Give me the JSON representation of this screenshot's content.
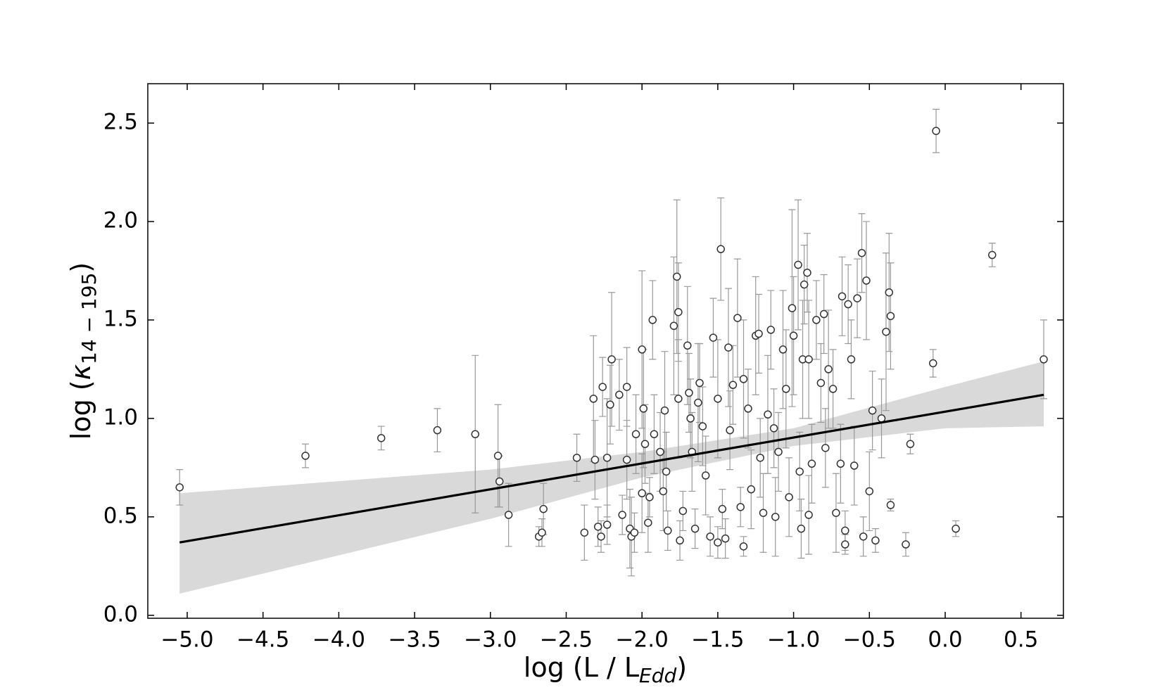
{
  "chart_data": {
    "type": "scatter",
    "xlabel": [
      "log (L / L",
      "Edd",
      ")"
    ],
    "ylabel": [
      "log (",
      "κ",
      "14 − 195",
      ")"
    ],
    "xlim": [
      -5.26,
      0.78
    ],
    "ylim": [
      -0.015,
      2.7
    ],
    "xticks": [
      {
        "value": -5.0,
        "label": "−5.0"
      },
      {
        "value": -4.5,
        "label": "−4.5"
      },
      {
        "value": -4.0,
        "label": "−4.0"
      },
      {
        "value": -3.5,
        "label": "−3.5"
      },
      {
        "value": -3.0,
        "label": "−3.0"
      },
      {
        "value": -2.5,
        "label": "−2.5"
      },
      {
        "value": -2.0,
        "label": "−2.0"
      },
      {
        "value": -1.5,
        "label": "−1.5"
      },
      {
        "value": -1.0,
        "label": "−1.0"
      },
      {
        "value": -0.5,
        "label": "−0.5"
      },
      {
        "value": 0.0,
        "label": "0.0"
      },
      0.5
    ],
    "yticks": [
      {
        "value": 0.0,
        "label": "0.0"
      },
      0.5,
      {
        "value": 1.0,
        "label": "1.0"
      },
      1.5,
      {
        "value": 2.0,
        "label": "2.0"
      },
      2.5
    ],
    "color": "#333333",
    "error_color": "#999999",
    "x": [
      -5.05,
      -4.22,
      -3.72,
      -3.35,
      -3.1,
      -2.95,
      -2.94,
      -2.88,
      -2.68,
      -2.66,
      -2.65,
      -2.43,
      -2.38,
      -2.32,
      -2.31,
      -2.29,
      -2.27,
      -2.26,
      -2.23,
      -2.23,
      -2.21,
      -2.2,
      -2.15,
      -2.13,
      -2.1,
      -2.1,
      -2.08,
      -2.07,
      -2.05,
      -2.04,
      -2.0,
      -1.99,
      -2.0,
      -1.98,
      -1.96,
      -1.95,
      -1.93,
      -1.92,
      -1.88,
      -1.86,
      -1.85,
      -1.84,
      -1.83,
      -1.79,
      -1.77,
      -1.76,
      -1.76,
      -1.75,
      -1.73,
      -1.7,
      -1.69,
      -1.68,
      -1.67,
      -1.65,
      -1.63,
      -1.62,
      -1.6,
      -1.58,
      -1.55,
      -1.53,
      -1.5,
      -1.48,
      -1.47,
      -1.45,
      -1.43,
      -1.42,
      -1.4,
      -1.37,
      -1.35,
      -1.33,
      -1.3,
      -1.28,
      -1.25,
      -1.23,
      -1.22,
      -1.2,
      -1.17,
      -1.15,
      -1.13,
      -1.1,
      -1.07,
      -1.05,
      -1.03,
      -1.01,
      -1.0,
      -0.97,
      -0.96,
      -0.94,
      -0.93,
      -0.91,
      -0.9,
      -0.9,
      -0.88,
      -0.85,
      -0.82,
      -0.8,
      -0.79,
      -0.77,
      -0.74,
      -0.72,
      -0.69,
      -0.68,
      -0.66,
      -0.64,
      -0.62,
      -0.6,
      -0.58,
      -0.55,
      -0.54,
      -0.52,
      -0.5,
      -0.48,
      -0.46,
      -0.42,
      -0.39,
      -0.37,
      -0.36,
      -0.36,
      -0.26,
      -0.23,
      -0.08,
      -0.06,
      0.07,
      0.31,
      0.65,
      -1.5,
      -1.33,
      -1.12,
      -0.95,
      -0.66
    ],
    "values": [
      0.65,
      0.81,
      0.9,
      0.94,
      0.92,
      0.81,
      0.68,
      0.51,
      0.4,
      0.42,
      0.54,
      0.8,
      0.42,
      1.1,
      0.79,
      0.45,
      0.4,
      1.16,
      0.46,
      0.8,
      1.07,
      1.3,
      1.12,
      0.51,
      1.16,
      0.79,
      0.44,
      0.4,
      0.42,
      0.92,
      1.35,
      1.05,
      0.62,
      0.87,
      0.47,
      0.6,
      1.5,
      0.92,
      0.83,
      0.63,
      1.04,
      0.73,
      0.43,
      1.47,
      1.72,
      1.54,
      1.1,
      0.38,
      0.53,
      1.37,
      1.13,
      1.0,
      0.83,
      0.44,
      1.08,
      1.18,
      0.96,
      0.71,
      0.4,
      1.41,
      1.1,
      1.86,
      0.54,
      0.39,
      1.36,
      0.94,
      1.17,
      1.51,
      0.55,
      1.2,
      1.05,
      0.64,
      1.42,
      1.43,
      0.8,
      0.52,
      1.02,
      1.45,
      0.95,
      0.83,
      1.35,
      1.15,
      0.6,
      1.56,
      1.42,
      1.78,
      0.73,
      1.3,
      1.68,
      1.74,
      1.3,
      0.51,
      0.77,
      1.5,
      1.18,
      1.53,
      0.85,
      1.25,
      1.15,
      0.52,
      0.77,
      1.62,
      0.43,
      1.58,
      1.3,
      0.76,
      1.61,
      1.84,
      0.4,
      1.7,
      0.63,
      1.04,
      0.38,
      1.0,
      1.44,
      1.64,
      1.52,
      0.56,
      0.36,
      0.87,
      1.28,
      2.46,
      0.44,
      1.83,
      1.3,
      0.37,
      0.35,
      0.5,
      0.44,
      0.36
    ],
    "yerr": [
      0.09,
      0.06,
      0.06,
      0.11,
      0.4,
      0.26,
      0.13,
      0.16,
      0.05,
      0.07,
      0.13,
      0.12,
      0.14,
      0.32,
      0.2,
      0.1,
      0.08,
      0.15,
      0.1,
      0.3,
      0.2,
      0.34,
      0.18,
      0.1,
      0.2,
      0.2,
      0.2,
      0.2,
      0.1,
      0.2,
      0.4,
      0.3,
      0.2,
      0.2,
      0.15,
      0.1,
      0.2,
      0.2,
      0.2,
      0.2,
      0.3,
      0.2,
      0.1,
      0.35,
      0.39,
      0.25,
      0.3,
      0.1,
      0.1,
      0.3,
      0.2,
      0.2,
      0.2,
      0.1,
      0.3,
      0.2,
      0.2,
      0.2,
      0.1,
      0.2,
      0.3,
      0.26,
      0.1,
      0.1,
      0.3,
      0.2,
      0.2,
      0.3,
      0.1,
      0.3,
      0.2,
      0.2,
      0.3,
      0.2,
      0.2,
      0.2,
      0.3,
      0.2,
      0.2,
      0.2,
      0.3,
      0.3,
      0.2,
      0.5,
      0.3,
      0.33,
      0.2,
      0.3,
      0.2,
      0.2,
      0.3,
      0.2,
      0.2,
      0.2,
      0.2,
      0.2,
      0.2,
      0.3,
      0.2,
      0.2,
      0.2,
      0.2,
      0.1,
      0.2,
      0.2,
      0.2,
      0.2,
      0.2,
      0.1,
      0.3,
      0.2,
      0.2,
      0.06,
      0.2,
      0.4,
      0.3,
      0.27,
      0.03,
      0.06,
      0.05,
      0.07,
      0.11,
      0.04,
      0.06,
      0.2,
      0.08,
      0.05,
      0.2,
      0.15,
      0.05
    ],
    "fit": {
      "color": "#000000",
      "x": [
        -5.05,
        0.65
      ],
      "values": [
        0.37,
        1.12
      ]
    },
    "band": {
      "color": "#d9d9d9",
      "x": [
        -5.05,
        -3.0,
        -2.0,
        -1.0,
        0.0,
        0.65
      ],
      "lower": [
        0.11,
        0.49,
        0.7,
        0.86,
        0.95,
        0.96
      ],
      "upper": [
        0.62,
        0.74,
        0.83,
        0.95,
        1.16,
        1.29
      ]
    }
  }
}
